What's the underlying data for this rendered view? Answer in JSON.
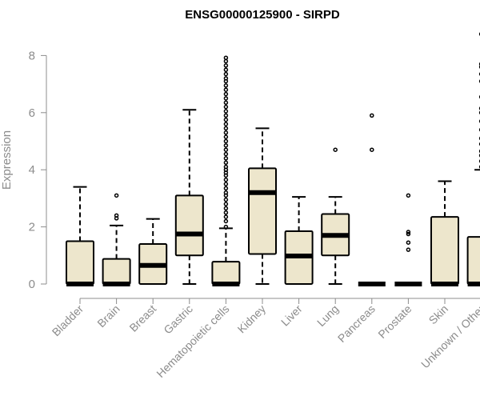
{
  "chart_data": {
    "type": "boxplot",
    "title": "ENSG00000125900 - SIRPD",
    "ylabel": "Expression",
    "xlabel": "",
    "ylim": [
      0,
      8.5
    ],
    "yticks": [
      0,
      2,
      4,
      6,
      8
    ],
    "categories": [
      "Bladder",
      "Brain",
      "Breast",
      "Gastric",
      "Hematopoietic cells",
      "Kidney",
      "Liver",
      "Lung",
      "Pancreas",
      "Prostate",
      "Skin",
      "Unknown / Other"
    ],
    "boxes": [
      {
        "q1": 0,
        "median": 0,
        "q3": 1.5,
        "whisker_low": 0,
        "whisker_high": 3.4,
        "outliers": []
      },
      {
        "q1": 0,
        "median": 0,
        "q3": 0.88,
        "whisker_low": 0,
        "whisker_high": 2.05,
        "outliers": [
          2.3,
          2.4,
          3.1
        ]
      },
      {
        "q1": 0,
        "median": 0.65,
        "q3": 1.4,
        "whisker_low": 0,
        "whisker_high": 2.28,
        "outliers": []
      },
      {
        "q1": 1.0,
        "median": 1.75,
        "q3": 3.1,
        "whisker_low": 0,
        "whisker_high": 6.1,
        "outliers": []
      },
      {
        "q1": 0,
        "median": 0,
        "q3": 0.78,
        "whisker_low": 0,
        "whisker_high": 1.95,
        "outliers": [
          2.0,
          2.2,
          2.35,
          2.5,
          2.65,
          2.8,
          2.95,
          3.1,
          3.2,
          3.35,
          3.5,
          3.65,
          3.8,
          3.9,
          4.0,
          4.1,
          4.25,
          4.4,
          4.55,
          4.7,
          4.85,
          5.0,
          5.15,
          5.3,
          5.45,
          5.6,
          5.75,
          5.9,
          6.05,
          6.2,
          6.35,
          6.5,
          6.65,
          6.8,
          6.95,
          7.1,
          7.2,
          7.35,
          7.5,
          7.65,
          7.8,
          7.92
        ]
      },
      {
        "q1": 1.05,
        "median": 3.2,
        "q3": 4.05,
        "whisker_low": 0,
        "whisker_high": 5.45,
        "outliers": []
      },
      {
        "q1": 0,
        "median": 0.98,
        "q3": 1.85,
        "whisker_low": 0,
        "whisker_high": 3.05,
        "outliers": []
      },
      {
        "q1": 1.0,
        "median": 1.7,
        "q3": 2.45,
        "whisker_low": 0,
        "whisker_high": 3.05,
        "outliers": [
          4.7
        ]
      },
      {
        "q1": 0,
        "median": 0,
        "q3": 0,
        "whisker_low": 0,
        "whisker_high": 0,
        "outliers": [
          4.7,
          5.9
        ]
      },
      {
        "q1": 0,
        "median": 0,
        "q3": 0,
        "whisker_low": 0,
        "whisker_high": 0,
        "outliers": [
          1.2,
          1.45,
          1.75,
          1.82,
          3.1
        ]
      },
      {
        "q1": 0,
        "median": 0,
        "q3": 2.35,
        "whisker_low": 0,
        "whisker_high": 3.6,
        "outliers": []
      },
      {
        "q1": 0,
        "median": 0,
        "q3": 1.65,
        "whisker_low": 0,
        "whisker_high": 4.0,
        "outliers": [
          4.1,
          4.3,
          4.5,
          4.65,
          4.9,
          5.1,
          5.4,
          5.7,
          6.0,
          6.15,
          6.55,
          7.1,
          7.35,
          7.6,
          7.7,
          8.75
        ]
      }
    ],
    "box_color": "#ede6cc",
    "line_color": "#000000",
    "axis_color": "#8c8c8c",
    "grid": false,
    "legend": "none"
  }
}
